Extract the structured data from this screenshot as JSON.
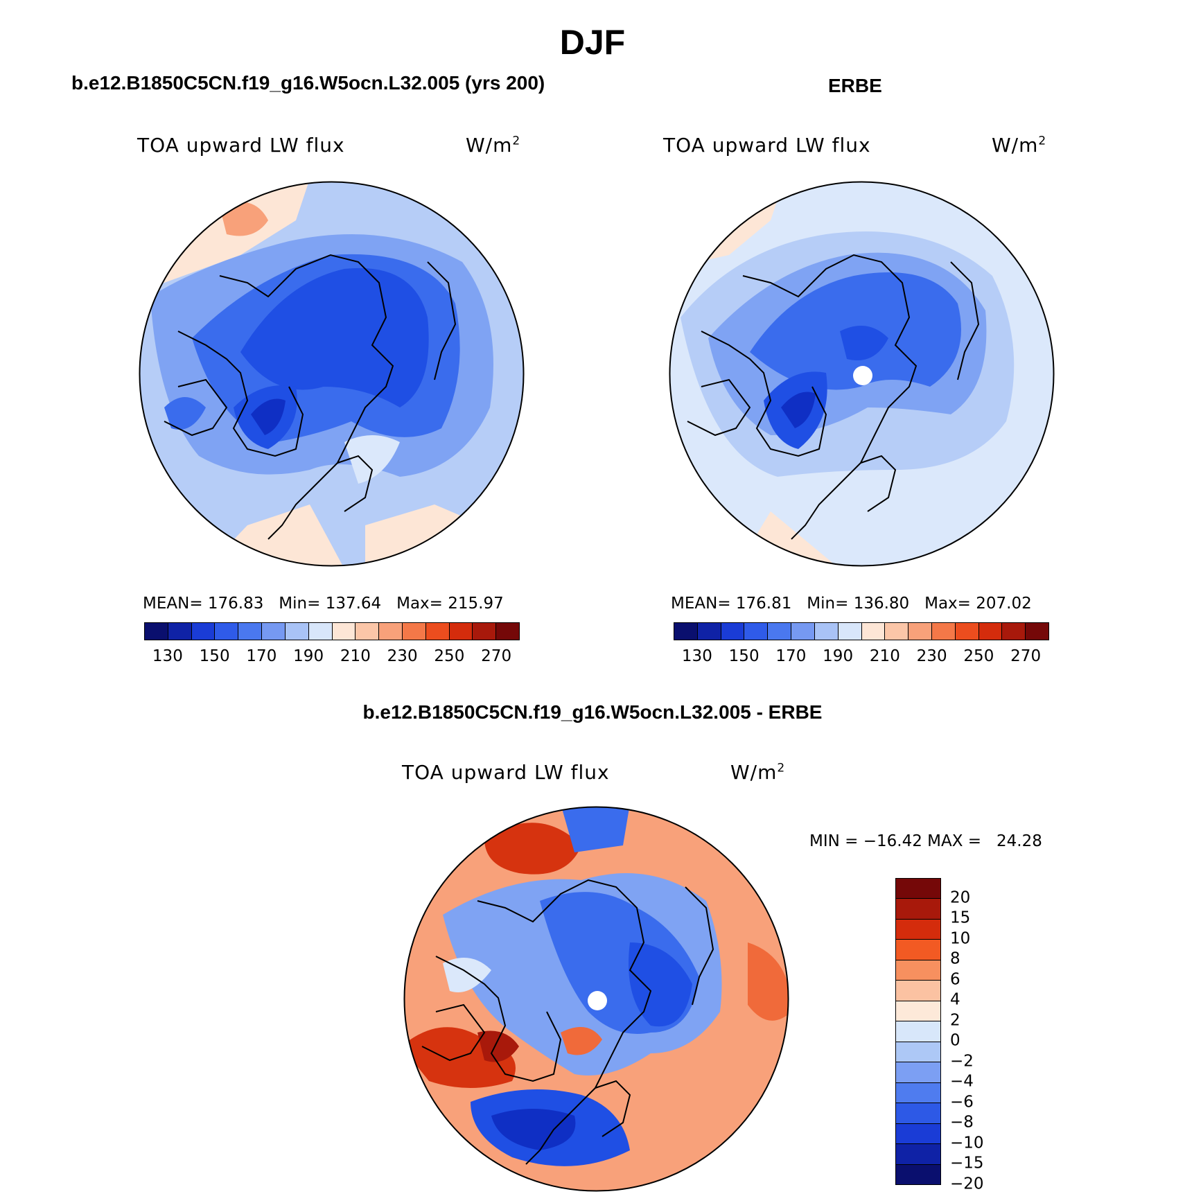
{
  "figure": {
    "title": "DJF",
    "panel_left": {
      "title": "b.e12.B1850C5CN.f19_g16.W5ocn.L32.005 (yrs 200)",
      "variable": "TOA upward LW flux",
      "units": "W/m",
      "units_exp": "2",
      "stats": "MEAN= 176.83   Min= 137.64   Max= 215.97"
    },
    "panel_right": {
      "title": "ERBE",
      "variable": "TOA upward LW flux",
      "units": "W/m",
      "units_exp": "2",
      "stats": "MEAN= 176.81   Min= 136.80   Max= 207.02"
    },
    "panel_diff": {
      "title": "b.e12.B1850C5CN.f19_g16.W5ocn.L32.005 - ERBE",
      "variable": "TOA upward LW flux",
      "units": "W/m",
      "units_exp": "2",
      "minmax": "MIN = −16.42 MAX =   24.28"
    }
  },
  "colorbar_abs": {
    "colors": [
      "#0a0f6e",
      "#0f22a6",
      "#1a3cd6",
      "#2f5be9",
      "#4a78ef",
      "#7699f2",
      "#a9c3f6",
      "#d8e6fa",
      "#fde6d6",
      "#fbc6a8",
      "#f8a17a",
      "#f47848",
      "#ec4d1e",
      "#d42c0c",
      "#a8190b",
      "#750808"
    ],
    "ticks": [
      "130",
      "150",
      "170",
      "190",
      "210",
      "230",
      "250",
      "270"
    ]
  },
  "colorbar_diff": {
    "colors": [
      "#750808",
      "#a8190b",
      "#d42c0c",
      "#f25a23",
      "#f7905f",
      "#fbc2a2",
      "#fde9d9",
      "#d8e7fa",
      "#adc8f6",
      "#7c9ff3",
      "#4f7cef",
      "#2d59e6",
      "#1a3cd6",
      "#0f22a6",
      "#0a0f6e"
    ],
    "ticks": [
      "20",
      "15",
      "10",
      "8",
      "6",
      "4",
      "2",
      "0",
      "−2",
      "−4",
      "−6",
      "−8",
      "−10",
      "−15",
      "−20"
    ]
  },
  "map_colors": {
    "deep": "#0f2fc4",
    "dark": "#1f4fe4",
    "mid": "#3a6ced",
    "light": "#7fa3f3",
    "pale": "#b6cdf7",
    "paler": "#dbe8fb",
    "peach": "#fde6d6",
    "salmon": "#f8a17a",
    "orange": "#f06a3a",
    "red": "#d6330f",
    "darkred": "#a8190b",
    "pole": "#ffffff"
  }
}
